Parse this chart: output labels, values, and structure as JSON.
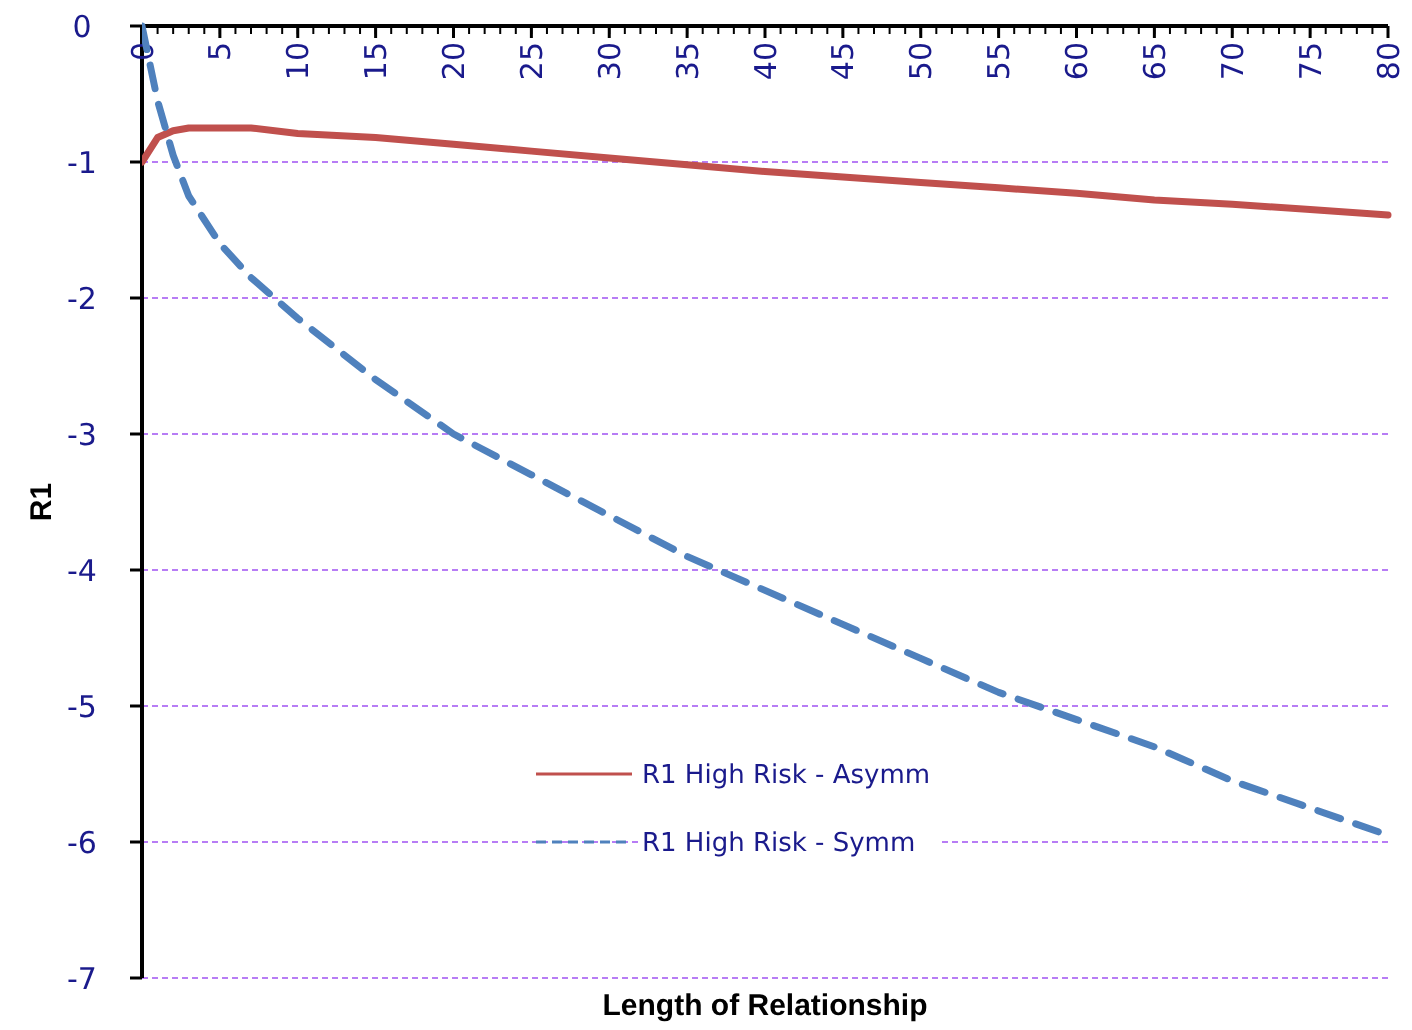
{
  "chart_data": {
    "type": "line",
    "xlabel": "Length of Relationship",
    "ylabel": "R1",
    "xlim": [
      0,
      80
    ],
    "xticks": [
      0,
      5,
      10,
      15,
      20,
      25,
      30,
      35,
      40,
      45,
      50,
      55,
      60,
      65,
      70,
      75,
      80
    ],
    "ylim": [
      -7,
      0
    ],
    "yticks": [
      -7,
      -6,
      -5,
      -4,
      -3,
      -2,
      -1,
      0
    ],
    "grid": "y",
    "legend": "bottom",
    "series": [
      {
        "name": "R1 High Risk - Asymm",
        "color": "#c0504d",
        "line_style": "solid",
        "x": [
          0,
          1,
          2,
          3,
          5,
          7,
          10,
          15,
          20,
          25,
          30,
          35,
          40,
          45,
          50,
          55,
          60,
          65,
          70,
          75,
          80
        ],
        "values": [
          -1.0,
          -0.82,
          -0.77,
          -0.75,
          -0.75,
          -0.75,
          -0.79,
          -0.82,
          -0.87,
          -0.92,
          -0.97,
          -1.02,
          -1.07,
          -1.11,
          -1.15,
          -1.19,
          -1.23,
          -1.28,
          -1.31,
          -1.35,
          -1.39
        ]
      },
      {
        "name": "R1 High Risk - Symm",
        "color": "#4f81bd",
        "line_style": "dashed",
        "x": [
          0,
          1,
          2,
          3,
          5,
          7,
          10,
          15,
          20,
          25,
          30,
          35,
          40,
          45,
          50,
          55,
          60,
          65,
          70,
          75,
          80
        ],
        "values": [
          0,
          -0.55,
          -0.95,
          -1.25,
          -1.6,
          -1.85,
          -2.15,
          -2.6,
          -3.0,
          -3.3,
          -3.6,
          -3.9,
          -4.15,
          -4.4,
          -4.65,
          -4.9,
          -5.1,
          -5.3,
          -5.55,
          -5.75,
          -5.95
        ]
      }
    ]
  }
}
